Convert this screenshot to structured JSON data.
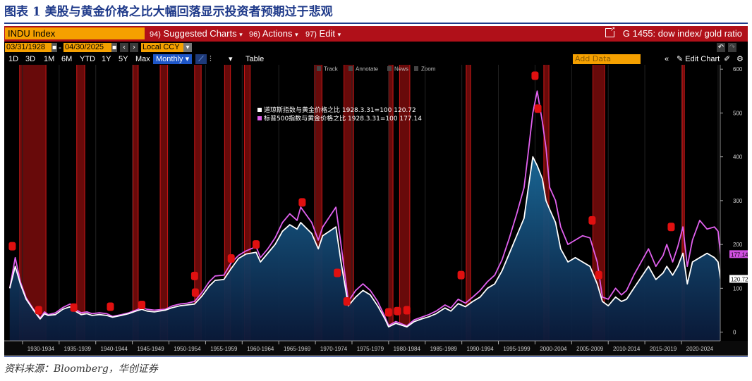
{
  "figure_title": "图表 1 美股与黄金价格之比大幅回落显示投资者预期过于悲观",
  "source_note": "资料来源：Bloomberg，华创证券",
  "terminal": {
    "ticker": "INDU Index",
    "menus": [
      {
        "num": "94)",
        "label": "Suggested Charts",
        "arrow": "▾"
      },
      {
        "num": "96)",
        "label": "Actions",
        "arrow": "▾"
      },
      {
        "num": "97)",
        "label": "Edit",
        "arrow": "▾"
      }
    ],
    "graph_title": "G 1455: dow index/ gold ratio",
    "start_date": "03/31/1928",
    "end_date": "04/30/2025",
    "currency": "Local CCY",
    "periods": [
      "1D",
      "3D",
      "1M",
      "6M",
      "YTD",
      "1Y",
      "5Y",
      "Max"
    ],
    "frequency": "Monthly",
    "table_label": "Table",
    "add_data_placeholder": "Add Data",
    "edit_chart_label": "Edit Chart",
    "chart_tools": [
      "Track",
      "Annotate",
      "News",
      "Zoom"
    ],
    "colors": {
      "header_red": "#b01019",
      "orange": "#f5a000",
      "selected_blue": "#1e56c8"
    }
  },
  "chart_data": {
    "type": "area",
    "x_range": [
      1928,
      2025
    ],
    "ylim": [
      -20,
      610
    ],
    "y_ticks": [
      0,
      100,
      200,
      300,
      400,
      500,
      600
    ],
    "x_ticks": [
      "1930-1934",
      "1935-1939",
      "1940-1944",
      "1945-1949",
      "1950-1954",
      "1955-1959",
      "1960-1964",
      "1965-1969",
      "1970-1974",
      "1975-1979",
      "1980-1984",
      "1985-1989",
      "1990-1994",
      "1995-1999",
      "2000-2004",
      "2005-2009",
      "2010-2014",
      "2015-2019",
      "2020-2024"
    ],
    "legend_position": "top-center",
    "series": [
      {
        "name": "道琼斯指数与黄金价格之比 1928.3.31=100",
        "last_value_label": "120.72",
        "color": "#ffffff",
        "x": [
          1928.25,
          1929.0,
          1929.7,
          1930.5,
          1931.5,
          1932.4,
          1933.0,
          1933.5,
          1934.5,
          1935.5,
          1936.5,
          1937.2,
          1938.0,
          1938.8,
          1939.5,
          1940.5,
          1941.5,
          1942.3,
          1943.5,
          1944.5,
          1945.5,
          1946.3,
          1947.0,
          1948.0,
          1949.5,
          1950.5,
          1951.5,
          1952.5,
          1953.5,
          1954.5,
          1955.5,
          1956.3,
          1957.5,
          1958.5,
          1959.5,
          1960.5,
          1961.9,
          1962.5,
          1963.5,
          1964.5,
          1965.5,
          1966.5,
          1967.5,
          1968.0,
          1969.5,
          1970.4,
          1971.0,
          1972.8,
          1973.5,
          1974.5,
          1975.5,
          1976.5,
          1977.5,
          1978.5,
          1979.5,
          1980.0,
          1981.0,
          1982.5,
          1983.5,
          1984.5,
          1985.5,
          1986.5,
          1987.7,
          1988.5,
          1989.5,
          1990.5,
          1991.5,
          1992.5,
          1993.5,
          1994.5,
          1995.5,
          1996.5,
          1997.5,
          1998.5,
          1999.0,
          1999.7,
          2000.3,
          2001.0,
          2001.5,
          2002.0,
          2002.8,
          2003.5,
          2004.5,
          2005.5,
          2006.5,
          2007.5,
          2008.5,
          2009.2,
          2010.0,
          2011.0,
          2011.8,
          2012.5,
          2013.5,
          2014.5,
          2015.5,
          2016.5,
          2017.5,
          2018.0,
          2018.8,
          2019.5,
          2020.2,
          2020.8,
          2021.5,
          2022.5,
          2023.5,
          2024.5,
          2025.0,
          2025.33
        ],
        "values": [
          100,
          150,
          110,
          75,
          50,
          30,
          42,
          38,
          40,
          52,
          58,
          48,
          40,
          42,
          38,
          40,
          38,
          34,
          38,
          42,
          48,
          52,
          48,
          46,
          50,
          56,
          60,
          62,
          64,
          82,
          105,
          118,
          120,
          145,
          168,
          178,
          182,
          160,
          180,
          200,
          230,
          245,
          235,
          250,
          225,
          190,
          220,
          240,
          160,
          60,
          80,
          95,
          85,
          60,
          30,
          12,
          20,
          12,
          24,
          30,
          35,
          42,
          55,
          48,
          65,
          58,
          70,
          80,
          100,
          110,
          140,
          180,
          220,
          260,
          320,
          400,
          380,
          350,
          300,
          280,
          250,
          190,
          160,
          170,
          160,
          150,
          110,
          70,
          60,
          80,
          70,
          75,
          100,
          125,
          150,
          120,
          135,
          150,
          130,
          150,
          180,
          110,
          160,
          170,
          180,
          170,
          160,
          120.72
        ]
      },
      {
        "name": "标普500指数与黄金价格之比 1928.3.31=100",
        "last_value_label": "177.14",
        "color": "#e060ee",
        "x": [
          1928.25,
          1929.0,
          1929.7,
          1930.5,
          1931.5,
          1932.4,
          1933.0,
          1933.5,
          1934.5,
          1935.5,
          1936.5,
          1937.2,
          1938.0,
          1938.8,
          1939.5,
          1940.5,
          1941.5,
          1942.3,
          1943.5,
          1944.5,
          1945.5,
          1946.3,
          1947.0,
          1948.0,
          1949.5,
          1950.5,
          1951.5,
          1952.5,
          1953.5,
          1954.5,
          1955.5,
          1956.3,
          1957.5,
          1958.5,
          1959.5,
          1960.5,
          1961.9,
          1962.5,
          1963.5,
          1964.5,
          1965.5,
          1966.5,
          1967.5,
          1968.0,
          1969.5,
          1970.4,
          1971.0,
          1972.8,
          1973.5,
          1974.5,
          1975.5,
          1976.5,
          1977.5,
          1978.5,
          1979.5,
          1980.0,
          1981.0,
          1982.5,
          1983.5,
          1984.5,
          1985.5,
          1986.5,
          1987.7,
          1988.5,
          1989.5,
          1990.5,
          1991.5,
          1992.5,
          1993.5,
          1994.5,
          1995.5,
          1996.5,
          1997.5,
          1998.5,
          1999.0,
          1999.7,
          2000.3,
          2001.0,
          2001.5,
          2002.0,
          2002.8,
          2003.5,
          2004.5,
          2005.5,
          2006.5,
          2007.5,
          2008.5,
          2009.2,
          2010.0,
          2011.0,
          2011.8,
          2012.5,
          2013.5,
          2014.5,
          2015.5,
          2016.5,
          2017.5,
          2018.0,
          2018.8,
          2019.5,
          2020.2,
          2020.8,
          2021.5,
          2022.5,
          2023.5,
          2024.5,
          2025.0,
          2025.33
        ],
        "values": [
          100,
          170,
          115,
          78,
          52,
          32,
          46,
          40,
          44,
          56,
          64,
          52,
          44,
          46,
          42,
          44,
          42,
          36,
          40,
          44,
          50,
          56,
          52,
          50,
          52,
          60,
          64,
          66,
          70,
          90,
          115,
          128,
          130,
          158,
          175,
          185,
          195,
          170,
          190,
          215,
          250,
          270,
          255,
          285,
          250,
          210,
          240,
          285,
          200,
          70,
          95,
          110,
          95,
          70,
          35,
          15,
          24,
          14,
          28,
          34,
          40,
          48,
          62,
          55,
          75,
          66,
          80,
          95,
          115,
          130,
          165,
          215,
          270,
          330,
          400,
          500,
          550,
          480,
          420,
          330,
          300,
          240,
          200,
          210,
          220,
          215,
          160,
          80,
          75,
          100,
          85,
          95,
          130,
          160,
          190,
          150,
          175,
          200,
          160,
          195,
          240,
          150,
          210,
          255,
          235,
          240,
          230,
          177.14
        ]
      }
    ],
    "shaded_periods": [
      [
        1929.6,
        1933.2
      ],
      [
        1937.4,
        1938.5
      ],
      [
        1945.1,
        1945.8
      ],
      [
        1948.8,
        1949.8
      ],
      [
        1953.5,
        1954.4
      ],
      [
        1957.6,
        1958.4
      ],
      [
        1960.3,
        1961.1
      ],
      [
        1969.9,
        1970.9
      ],
      [
        1973.9,
        1975.2
      ],
      [
        1980.0,
        1980.6
      ],
      [
        1981.5,
        1982.9
      ],
      [
        1990.6,
        1991.2
      ],
      [
        2001.2,
        2001.9
      ],
      [
        2007.9,
        2009.5
      ],
      [
        2020.1,
        2020.4
      ]
    ],
    "peak_markers": [
      {
        "x": 1928.6,
        "y": 196
      },
      {
        "x": 1932.2,
        "y": 50
      },
      {
        "x": 1937.0,
        "y": 56
      },
      {
        "x": 1942.0,
        "y": 58
      },
      {
        "x": 1946.3,
        "y": 62
      },
      {
        "x": 1953.5,
        "y": 128
      },
      {
        "x": 1953.6,
        "y": 90
      },
      {
        "x": 1958.5,
        "y": 168
      },
      {
        "x": 1961.9,
        "y": 200
      },
      {
        "x": 1968.2,
        "y": 296
      },
      {
        "x": 1973.0,
        "y": 135
      },
      {
        "x": 1974.3,
        "y": 70
      },
      {
        "x": 1980.0,
        "y": 45
      },
      {
        "x": 1981.2,
        "y": 48
      },
      {
        "x": 1982.5,
        "y": 50
      },
      {
        "x": 1989.9,
        "y": 130
      },
      {
        "x": 2000.0,
        "y": 585
      },
      {
        "x": 2000.4,
        "y": 510
      },
      {
        "x": 2007.8,
        "y": 255
      },
      {
        "x": 2008.7,
        "y": 130
      },
      {
        "x": 2018.6,
        "y": 240
      }
    ]
  }
}
